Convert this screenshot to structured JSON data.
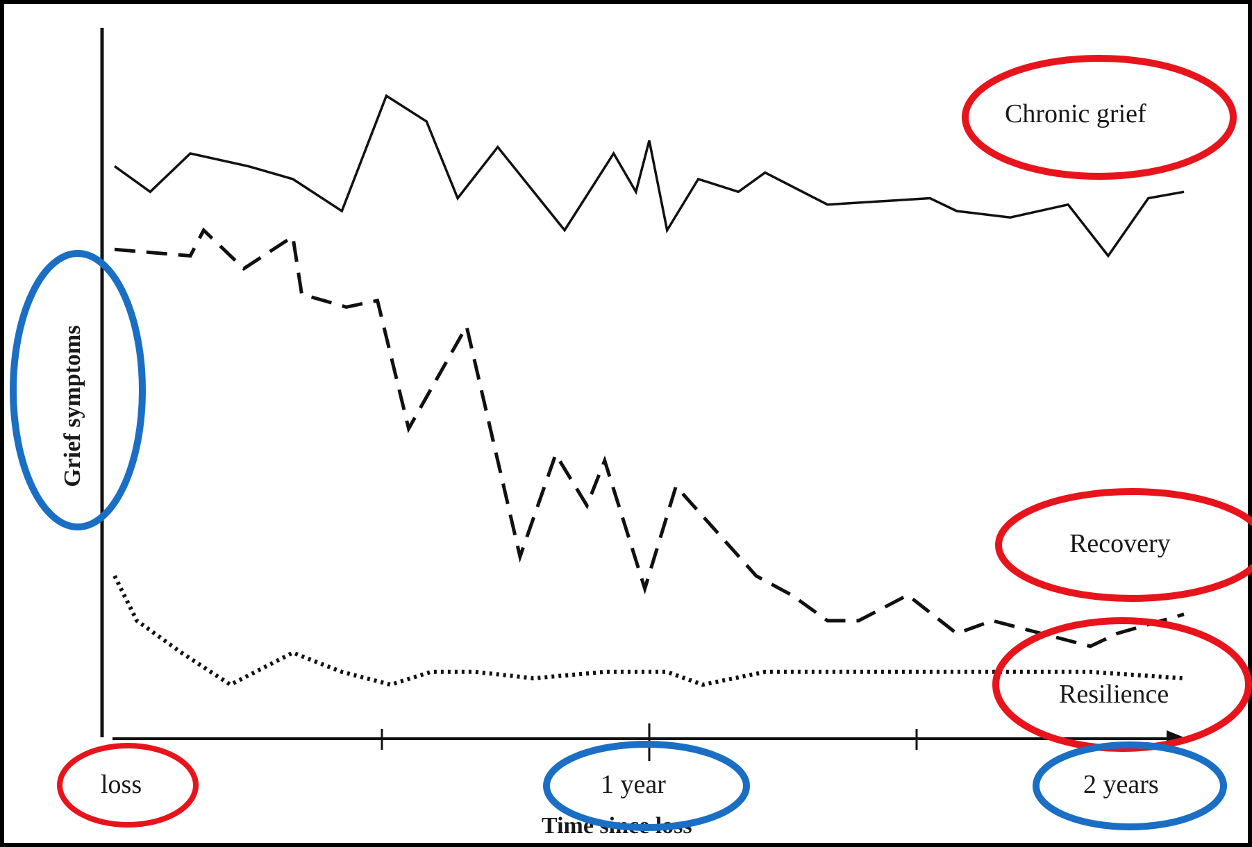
{
  "chart_data": {
    "type": "line",
    "xlabel": "Time since loss",
    "ylabel": "Grief symptoms",
    "xlim": [
      0,
      24
    ],
    "ylim": [
      0,
      100
    ],
    "x_tick_labels": [
      {
        "x": 0,
        "label": "loss"
      },
      {
        "x": 12,
        "label": "1 year"
      },
      {
        "x": 24,
        "label": "2 years"
      }
    ],
    "x_ticks_unlabeled": [
      6,
      18
    ],
    "grid": false,
    "series": [
      {
        "name": "Chronic grief",
        "style": "solid",
        "x": [
          0,
          0.8,
          1.7,
          3.0,
          4.0,
          5.1,
          6.1,
          7.0,
          7.7,
          8.6,
          10.1,
          11.2,
          11.7,
          12.0,
          12.4,
          13.1,
          14.0,
          14.6,
          16.0,
          18.3,
          18.9,
          20.1,
          21.4,
          22.3,
          23.2,
          24.0
        ],
        "y": [
          89,
          85,
          91,
          89,
          87,
          82,
          100,
          96,
          84,
          92,
          79,
          91,
          85,
          93,
          79,
          87,
          85,
          88,
          83,
          84,
          82,
          81,
          83,
          75,
          84,
          85
        ]
      },
      {
        "name": "Recovery",
        "style": "dashed",
        "x": [
          0,
          1.7,
          2.0,
          2.9,
          4.0,
          4.2,
          5.2,
          5.9,
          6.6,
          7.9,
          9.1,
          9.9,
          10.6,
          11.0,
          11.9,
          12.6,
          14.4,
          15.2,
          16.0,
          16.7,
          17.8,
          18.9,
          19.7,
          21.9,
          22.5,
          24.0
        ],
        "y": [
          76,
          75,
          79,
          73,
          78,
          69,
          67,
          68,
          48,
          64,
          28,
          44,
          36,
          43,
          23,
          39,
          25,
          22,
          18,
          18,
          22,
          16,
          18,
          14,
          16,
          19
        ]
      },
      {
        "name": "Resilience",
        "style": "dotted",
        "x": [
          0,
          0.5,
          1.5,
          2.6,
          4.0,
          5.1,
          6.2,
          7.1,
          8.1,
          9.4,
          11.0,
          12.4,
          13.2,
          14.6,
          15.7,
          17.0,
          18.0,
          19.6,
          21.9,
          24.0
        ],
        "y": [
          25,
          18,
          13,
          8,
          13,
          10,
          8,
          10,
          10,
          9,
          10,
          10,
          8,
          10,
          10,
          10,
          10,
          10,
          10,
          9
        ]
      }
    ],
    "annotations": [
      "Chronic grief",
      "Recovery",
      "Resilience"
    ],
    "highlight_colors": {
      "red": "#e8141c",
      "blue": "#1a6fc4"
    }
  }
}
